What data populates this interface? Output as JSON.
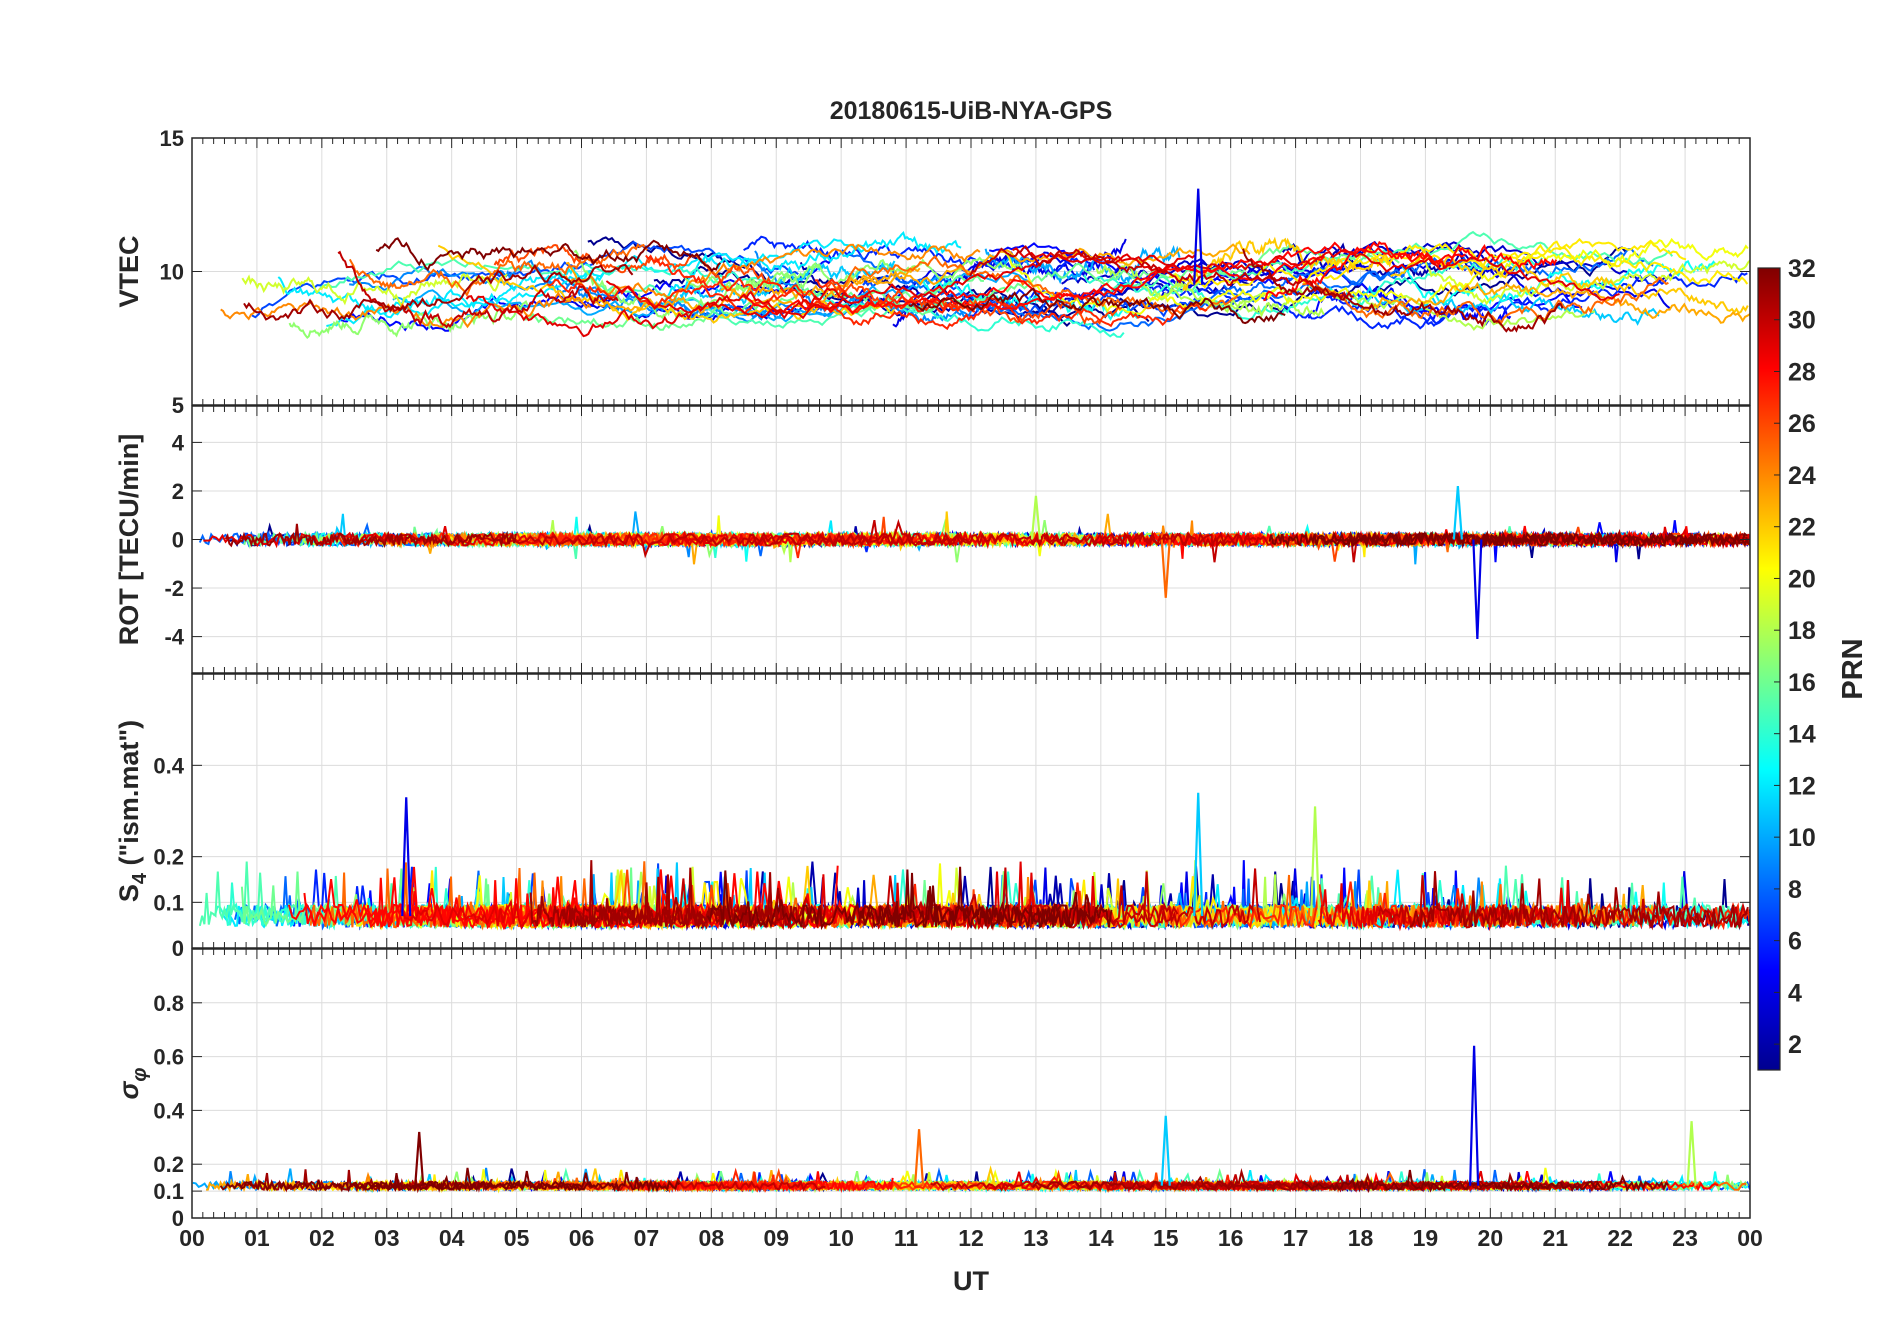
{
  "chart_data": {
    "type": "line",
    "title": "20180615-UiB-NYA-GPS",
    "xlabel": "UT",
    "xlim": [
      0,
      24
    ],
    "x_tick_labels": [
      "00",
      "01",
      "02",
      "03",
      "04",
      "05",
      "06",
      "07",
      "08",
      "09",
      "10",
      "11",
      "12",
      "13",
      "14",
      "15",
      "16",
      "17",
      "18",
      "19",
      "20",
      "21",
      "22",
      "23",
      "00"
    ],
    "panels": [
      {
        "id": "vtec",
        "ylabel": "VTEC",
        "ylim": [
          5,
          15
        ],
        "y_ticks": [
          5,
          10,
          15
        ],
        "y_tick_labels": [
          "5",
          "10",
          "15"
        ],
        "description": "Vertical TEC per satellite, mostly 7-12 TECU with peak about 13 near 15.5 UT",
        "base_level": 9.5,
        "spread": 1.6,
        "spike_scale": 1.2
      },
      {
        "id": "rot",
        "ylabel": "ROT [TECU/min]",
        "ylim": [
          -5.5,
          5.5
        ],
        "y_ticks": [
          -4,
          -2,
          0,
          2,
          4
        ],
        "y_tick_labels": [
          "-4",
          "-2",
          "0",
          "2",
          "4"
        ],
        "description": "Rate of TEC change, near 0 with spikes to about -4.1 near 19.8 UT and 2.2 near 19.5 UT",
        "base_level": 0,
        "spread": 0.25,
        "spike_scale": 2.0
      },
      {
        "id": "s4",
        "ylabel_main": "S",
        "ylabel_sub": "4",
        "ylabel_rest": " (\"ism.mat\")",
        "ylim": [
          0,
          0.6
        ],
        "y_ticks": [
          0,
          0.1,
          0.2,
          0.4
        ],
        "y_tick_labels": [
          "0",
          "0.1",
          "0.2",
          "0.4"
        ],
        "description": "Amplitude scintillation index, mostly 0.03-0.15 with peaks to about 0.33 near 3.3 and 15.5 UT",
        "base_level": 0.07,
        "spread": 0.03,
        "spike_scale": 0.18
      },
      {
        "id": "sigma_phi",
        "ylabel_main": "σ",
        "ylabel_sub": "φ",
        "ylim": [
          0,
          1
        ],
        "y_ticks": [
          0,
          0.1,
          0.2,
          0.4,
          0.6,
          0.8
        ],
        "y_tick_labels": [
          "0",
          "0.1",
          "0.2",
          "0.4",
          "0.6",
          "0.8"
        ],
        "description": "Phase scintillation index, mostly about 0.12 with a spike to about 0.64 near 19.75 UT",
        "base_level": 0.12,
        "spread": 0.015,
        "spike_scale": 0.2
      }
    ],
    "colorbar": {
      "label": "PRN",
      "range": [
        1,
        32
      ],
      "ticks": [
        2,
        4,
        6,
        8,
        10,
        12,
        14,
        16,
        18,
        20,
        22,
        24,
        26,
        28,
        30,
        32
      ],
      "tick_labels": [
        "2",
        "4",
        "6",
        "8",
        "10",
        "12",
        "14",
        "16",
        "18",
        "20",
        "22",
        "24",
        "26",
        "28",
        "30",
        "32"
      ],
      "colormap": "jet",
      "colormap_stops": [
        "#00008f",
        "#0000ff",
        "#0080ff",
        "#00ffff",
        "#80ff80",
        "#ffff00",
        "#ff8000",
        "#ff0000",
        "#800000"
      ]
    },
    "series_count": 32,
    "notable_events": [
      {
        "panel": "vtec",
        "x": 15.5,
        "y": 13.1
      },
      {
        "panel": "rot",
        "x": 19.8,
        "y": -4.1
      },
      {
        "panel": "rot",
        "x": 19.5,
        "y": 2.2
      },
      {
        "panel": "rot",
        "x": 13.0,
        "y": 1.8
      },
      {
        "panel": "rot",
        "x": 15.0,
        "y": -2.4
      },
      {
        "panel": "s4",
        "x": 3.3,
        "y": 0.33
      },
      {
        "panel": "s4",
        "x": 15.5,
        "y": 0.34
      },
      {
        "panel": "s4",
        "x": 17.3,
        "y": 0.31
      },
      {
        "panel": "sigma_phi",
        "x": 19.75,
        "y": 0.64
      },
      {
        "panel": "sigma_phi",
        "x": 15.0,
        "y": 0.38
      },
      {
        "panel": "sigma_phi",
        "x": 23.1,
        "y": 0.36
      },
      {
        "panel": "sigma_phi",
        "x": 11.2,
        "y": 0.33
      },
      {
        "panel": "sigma_phi",
        "x": 3.5,
        "y": 0.32
      }
    ]
  }
}
